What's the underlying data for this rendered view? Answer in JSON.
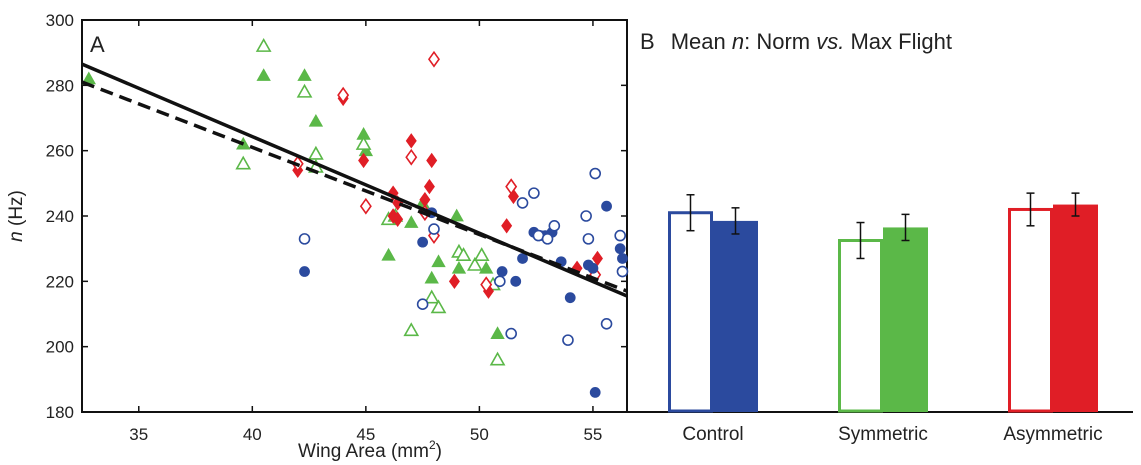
{
  "chart_data": [
    {
      "panel": "A",
      "type": "scatter",
      "title": "",
      "xlabel": "Wing Area (mm²)",
      "xlabel_parts": [
        "Wing Area (mm",
        "2",
        ")"
      ],
      "ylabel": "n (Hz)",
      "ylabel_parts": [
        "n",
        " (Hz)"
      ],
      "xlim": [
        32.5,
        56.5
      ],
      "ylim": [
        180,
        300
      ],
      "xticks": [
        35,
        40,
        45,
        50,
        55
      ],
      "yticks": [
        180,
        200,
        220,
        240,
        260,
        280,
        300
      ],
      "grid": false,
      "colors": {
        "control": "#2b4a9e",
        "symmetric": "#5bb848",
        "asymmetric": "#e01e26",
        "line": "#111111"
      },
      "series": [
        {
          "group": "symmetric",
          "marker": "triangle",
          "filled": true,
          "points": [
            [
              32.8,
              282
            ],
            [
              40.5,
              283
            ],
            [
              42.3,
              283
            ],
            [
              42.8,
              269
            ],
            [
              44.9,
              265
            ],
            [
              45.0,
              260
            ],
            [
              46.0,
              228
            ],
            [
              47.0,
              238
            ],
            [
              47.5,
              244
            ],
            [
              47.9,
              221
            ],
            [
              48.2,
              226
            ],
            [
              49.0,
              240
            ],
            [
              49.1,
              224
            ],
            [
              50.3,
              224
            ],
            [
              50.8,
              204
            ],
            [
              39.6,
              262
            ]
          ]
        },
        {
          "group": "symmetric",
          "marker": "triangle",
          "filled": false,
          "points": [
            [
              40.5,
              292
            ],
            [
              42.3,
              278
            ],
            [
              39.6,
              256
            ],
            [
              42.8,
              259
            ],
            [
              42.8,
              255
            ],
            [
              44.9,
              262
            ],
            [
              46.0,
              239
            ],
            [
              46.3,
              240
            ],
            [
              47.0,
              205
            ],
            [
              47.9,
              215
            ],
            [
              48.2,
              212
            ],
            [
              49.1,
              229
            ],
            [
              49.3,
              228
            ],
            [
              49.8,
              225
            ],
            [
              50.1,
              228
            ],
            [
              50.6,
              219
            ],
            [
              50.8,
              196
            ]
          ]
        },
        {
          "group": "asymmetric",
          "marker": "diamond",
          "filled": true,
          "points": [
            [
              42.0,
              254
            ],
            [
              44.0,
              276
            ],
            [
              44.9,
              257
            ],
            [
              46.2,
              247
            ],
            [
              46.4,
              244
            ],
            [
              46.2,
              240
            ],
            [
              46.4,
              239
            ],
            [
              47.0,
              263
            ],
            [
              47.9,
              257
            ],
            [
              47.8,
              249
            ],
            [
              47.6,
              245
            ],
            [
              48.9,
              220
            ],
            [
              50.4,
              217
            ],
            [
              51.2,
              237
            ],
            [
              51.5,
              246
            ],
            [
              54.3,
              224
            ],
            [
              55.2,
              227
            ]
          ]
        },
        {
          "group": "asymmetric",
          "marker": "diamond",
          "filled": false,
          "points": [
            [
              42.0,
              256
            ],
            [
              44.0,
              277
            ],
            [
              45.0,
              243
            ],
            [
              47.0,
              258
            ],
            [
              47.6,
              241
            ],
            [
              48.0,
              288
            ],
            [
              48.0,
              234
            ],
            [
              50.3,
              219
            ],
            [
              51.4,
              249
            ],
            [
              55.1,
              222
            ]
          ]
        },
        {
          "group": "control",
          "marker": "circle",
          "filled": true,
          "points": [
            [
              42.3,
              223
            ],
            [
              47.5,
              232
            ],
            [
              47.9,
              241
            ],
            [
              51.0,
              223
            ],
            [
              51.6,
              220
            ],
            [
              51.9,
              227
            ],
            [
              52.4,
              235
            ],
            [
              52.7,
              234
            ],
            [
              52.9,
              234
            ],
            [
              53.2,
              235
            ],
            [
              53.6,
              226
            ],
            [
              54.0,
              215
            ],
            [
              54.8,
              225
            ],
            [
              55.0,
              224
            ],
            [
              55.1,
              186
            ],
            [
              55.6,
              243
            ],
            [
              56.2,
              230
            ],
            [
              56.3,
              227
            ]
          ]
        },
        {
          "group": "control",
          "marker": "circle",
          "filled": false,
          "points": [
            [
              42.3,
              233
            ],
            [
              47.5,
              213
            ],
            [
              48.0,
              236
            ],
            [
              50.9,
              220
            ],
            [
              51.4,
              204
            ],
            [
              51.9,
              244
            ],
            [
              52.4,
              247
            ],
            [
              52.6,
              234
            ],
            [
              53.0,
              233
            ],
            [
              53.3,
              237
            ],
            [
              53.9,
              202
            ],
            [
              54.7,
              240
            ],
            [
              54.8,
              233
            ],
            [
              55.1,
              253
            ],
            [
              55.6,
              207
            ],
            [
              56.2,
              234
            ],
            [
              56.3,
              223
            ]
          ]
        }
      ],
      "fit_lines": [
        {
          "style": "solid",
          "points": [
            [
              32.5,
              286.5
            ],
            [
              56.5,
              215.5
            ]
          ]
        },
        {
          "style": "dashed",
          "points": [
            [
              32.5,
              281.0
            ],
            [
              56.5,
              217.0
            ]
          ]
        }
      ],
      "panel_label": "A"
    },
    {
      "panel": "B",
      "type": "bar",
      "title_parts": {
        "label": "B",
        "prefix": "Mean ",
        "italic1": "n",
        "mid": ": Norm ",
        "italic2": "vs.",
        "suffix": " Max Flight"
      },
      "categories": [
        "Control",
        "Symmetric",
        "Asymmetric"
      ],
      "ylim": [
        180,
        300
      ],
      "bars": [
        {
          "category": "Control",
          "color": "#2b4a9e",
          "pairs": [
            {
              "filled": false,
              "value": 241,
              "error": 5.5
            },
            {
              "filled": true,
              "value": 238.5,
              "error": 4
            }
          ]
        },
        {
          "category": "Symmetric",
          "color": "#5bb848",
          "pairs": [
            {
              "filled": false,
              "value": 232.5,
              "error": 5.5
            },
            {
              "filled": true,
              "value": 236.5,
              "error": 4
            }
          ]
        },
        {
          "category": "Asymmetric",
          "color": "#e01e26",
          "pairs": [
            {
              "filled": false,
              "value": 242,
              "error": 5
            },
            {
              "filled": true,
              "value": 243.5,
              "error": 3.5
            }
          ]
        }
      ]
    }
  ]
}
